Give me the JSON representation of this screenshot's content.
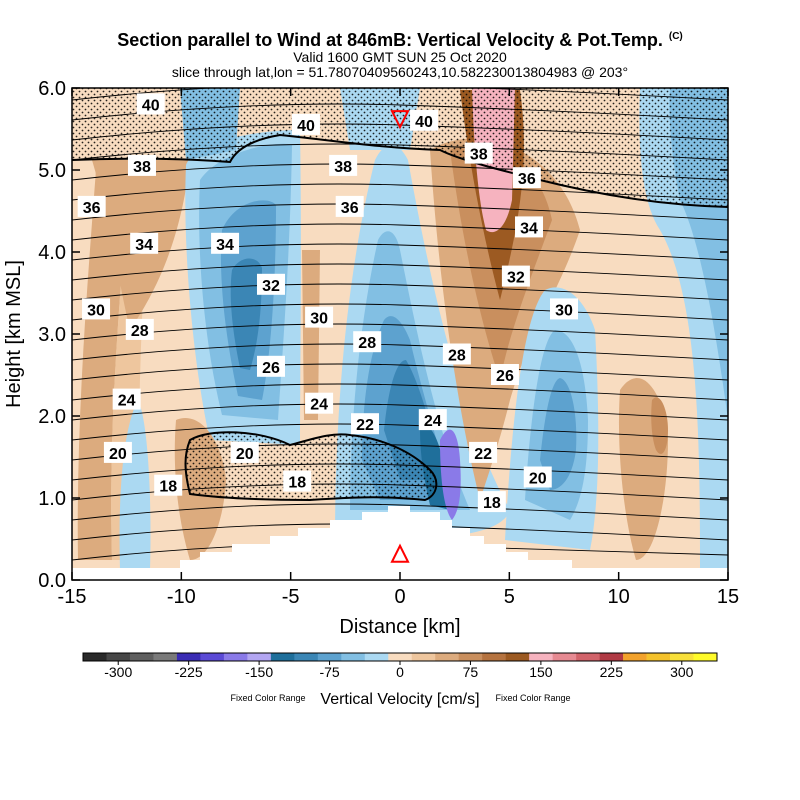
{
  "chart_data": {
    "type": "heatmap",
    "title": "Section parallel to Wind at 846mB: Vertical Velocity & Pot.Temp.",
    "title_mark": "(C)",
    "subtitle_1": "Valid 1600 GMT SUN 25 Oct 2020",
    "subtitle_2": "slice through lat,lon = 51.78070409560243,10.582230013804983 @ 203°",
    "xlabel": "Distance [km]",
    "ylabel": "Height [km MSL]",
    "xlim": [
      -15,
      15
    ],
    "ylim": [
      0,
      6
    ],
    "x_ticks": [
      "-15",
      "-10",
      "-5",
      "0",
      "5",
      "10",
      "15"
    ],
    "y_ticks": [
      "0.0",
      "1.0",
      "2.0",
      "3.0",
      "4.0",
      "5.0",
      "6.0"
    ],
    "theta_contour_labels": [
      {
        "text": "40",
        "x": -11.4,
        "y": 5.8
      },
      {
        "text": "40",
        "x": -4.3,
        "y": 5.55
      },
      {
        "text": "40",
        "x": 1.1,
        "y": 5.6
      },
      {
        "text": "38",
        "x": -11.8,
        "y": 5.05
      },
      {
        "text": "38",
        "x": -2.6,
        "y": 5.05
      },
      {
        "text": "38",
        "x": 3.6,
        "y": 5.2
      },
      {
        "text": "36",
        "x": -14.1,
        "y": 4.55
      },
      {
        "text": "36",
        "x": -2.3,
        "y": 4.55
      },
      {
        "text": "36",
        "x": 5.8,
        "y": 4.9
      },
      {
        "text": "34",
        "x": -11.7,
        "y": 4.1
      },
      {
        "text": "34",
        "x": -8.0,
        "y": 4.1
      },
      {
        "text": "34",
        "x": 5.9,
        "y": 4.3
      },
      {
        "text": "32",
        "x": -5.9,
        "y": 3.6
      },
      {
        "text": "32",
        "x": 5.3,
        "y": 3.7
      },
      {
        "text": "30",
        "x": -13.9,
        "y": 3.3
      },
      {
        "text": "30",
        "x": -3.7,
        "y": 3.2
      },
      {
        "text": "30",
        "x": 7.5,
        "y": 3.3
      },
      {
        "text": "28",
        "x": -11.9,
        "y": 3.05
      },
      {
        "text": "28",
        "x": -1.5,
        "y": 2.9
      },
      {
        "text": "28",
        "x": 2.6,
        "y": 2.75
      },
      {
        "text": "26",
        "x": -5.9,
        "y": 2.6
      },
      {
        "text": "26",
        "x": 4.8,
        "y": 2.5
      },
      {
        "text": "24",
        "x": -12.5,
        "y": 2.2
      },
      {
        "text": "24",
        "x": -3.7,
        "y": 2.15
      },
      {
        "text": "24",
        "x": 1.5,
        "y": 1.95
      },
      {
        "text": "22",
        "x": -1.6,
        "y": 1.9
      },
      {
        "text": "22",
        "x": 3.8,
        "y": 1.55
      },
      {
        "text": "20",
        "x": -12.9,
        "y": 1.55
      },
      {
        "text": "20",
        "x": -7.1,
        "y": 1.55
      },
      {
        "text": "20",
        "x": 6.3,
        "y": 1.25
      },
      {
        "text": "18",
        "x": -10.6,
        "y": 1.15
      },
      {
        "text": "18",
        "x": -4.7,
        "y": 1.2
      },
      {
        "text": "18",
        "x": 4.2,
        "y": 0.95
      }
    ],
    "markers": [
      {
        "shape": "triangle-down",
        "x": 0,
        "y": 5.62,
        "color": "#ff0000"
      },
      {
        "shape": "triangle-up",
        "x": 0,
        "y": 0.32,
        "color": "#ff0000"
      }
    ],
    "colorbar": {
      "title": "Vertical Velocity [cm/s]",
      "note_left": "Fixed Color Range",
      "note_right": "Fixed Color Range",
      "tick_labels": [
        "-300",
        "-225",
        "-150",
        "-75",
        "0",
        "75",
        "150",
        "225",
        "300"
      ],
      "range": [
        -337.5,
        337.5
      ],
      "colors": [
        "#2a2a2a",
        "#474747",
        "#5f5f5f",
        "#7a7a7a",
        "#3a2cb4",
        "#5b4ad6",
        "#8a7ae8",
        "#b3a6f2",
        "#1f6f9b",
        "#3b86b5",
        "#5da2cf",
        "#82bfe3",
        "#abd9f2",
        "#f8dcc0",
        "#eec69e",
        "#dcab7e",
        "#c98f5e",
        "#b57340",
        "#9c5a22",
        "#f6b3bf",
        "#e68a92",
        "#d1636a",
        "#b03a44",
        "#f2a22c",
        "#f4c22b",
        "#f8e03a",
        "#fffb2a"
      ]
    },
    "palette": {
      "up_light": "#f8dcc0",
      "up_mid": "#eec69e",
      "up_strong": "#dcab7e",
      "up_stronger": "#c98f5e",
      "up_max": "#9c5a22",
      "up_pink": "#f6b3bf",
      "down_light": "#abd9f2",
      "down_mid": "#82bfe3",
      "down_strong": "#5da2cf",
      "down_stronger": "#3b86b5",
      "down_max": "#1f6f9b",
      "down_violet": "#8a7ae8",
      "terrain": "#ffffff",
      "stipple": "#000000"
    }
  }
}
